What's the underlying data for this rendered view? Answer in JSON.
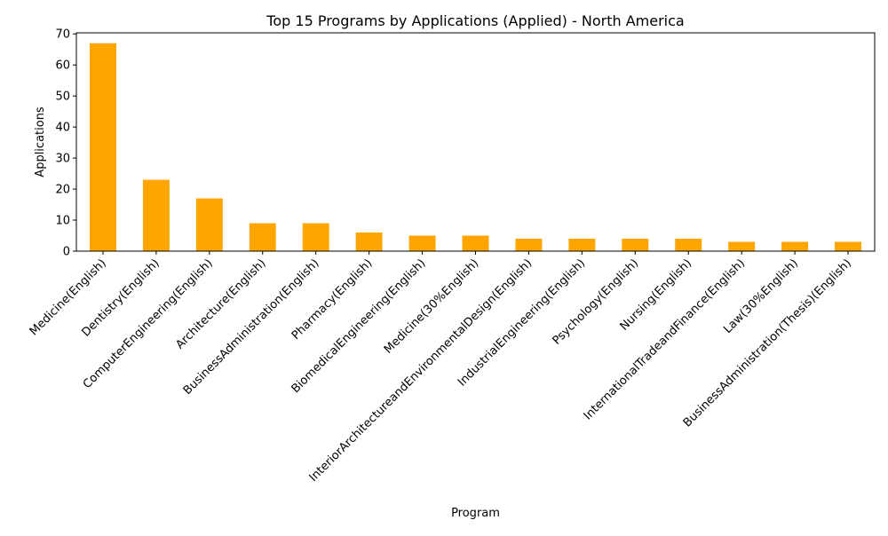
{
  "chart_data": {
    "type": "bar",
    "title": "Top 15 Programs by Applications (Applied) - North America",
    "xlabel": "Program",
    "ylabel": "Applications",
    "categories": [
      "Medicine(English)",
      "Dentistry(English)",
      "ComputerEngineering(English)",
      "Architecture(English)",
      "BusinessAdministration(English)",
      "Pharmacy(English)",
      "BiomedicalEngineering(English)",
      "Medicine(30%English)",
      "InteriorArchitectureandEnvironmentalDesign(English)",
      "IndustrialEngineering(English)",
      "Psychology(English)",
      "Nursing(English)",
      "InternationalTradeandFinance(English)",
      "Law(30%English)",
      "BusinessAdministration(Thesis)(English)"
    ],
    "values": [
      67,
      23,
      17,
      9,
      9,
      6,
      5,
      5,
      4,
      4,
      4,
      4,
      3,
      3,
      3
    ],
    "ylim": [
      0,
      70.35
    ],
    "yticks": [
      0,
      10,
      20,
      30,
      40,
      50,
      60,
      70
    ],
    "grid": false,
    "legend": "none",
    "bar_color": "#ffa500"
  }
}
